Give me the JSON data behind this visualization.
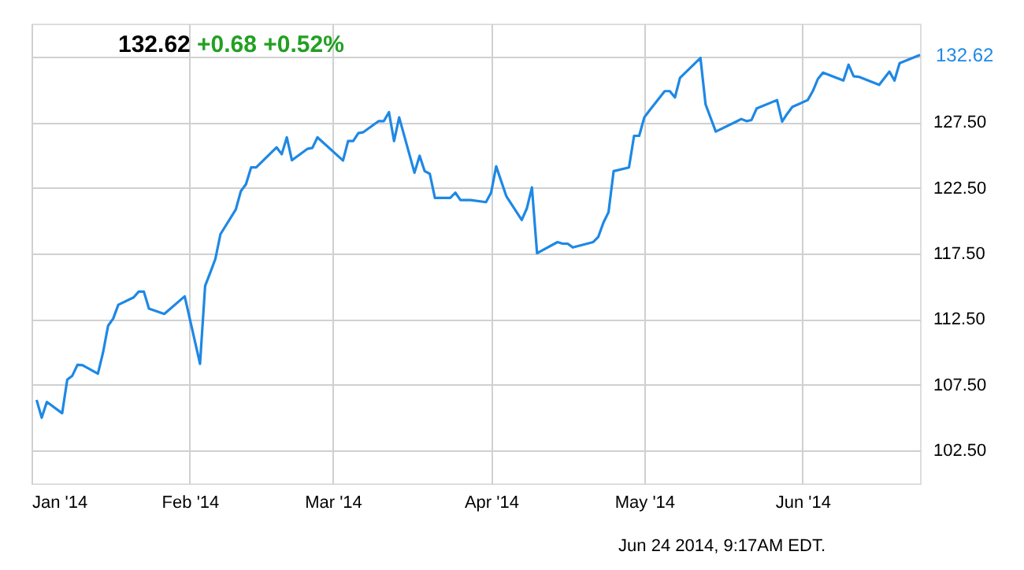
{
  "chart_data": {
    "type": "line",
    "title": "132.62",
    "subtitle": "+0.68 +0.52%",
    "x": [
      "2014-01-02",
      "2014-01-03",
      "2014-01-04",
      "2014-01-07",
      "2014-01-08",
      "2014-01-09",
      "2014-01-10",
      "2014-01-11",
      "2014-01-14",
      "2014-01-15",
      "2014-01-16",
      "2014-01-17",
      "2014-01-18",
      "2014-01-21",
      "2014-01-22",
      "2014-01-23",
      "2014-01-24",
      "2014-01-27",
      "2014-01-31",
      "2014-02-03",
      "2014-02-04",
      "2014-02-05",
      "2014-02-06",
      "2014-02-07",
      "2014-02-10",
      "2014-02-11",
      "2014-02-12",
      "2014-02-13",
      "2014-02-14",
      "2014-02-18",
      "2014-02-19",
      "2014-02-20",
      "2014-02-21",
      "2014-02-24",
      "2014-02-25",
      "2014-02-26",
      "2014-03-03",
      "2014-03-04",
      "2014-03-05",
      "2014-03-06",
      "2014-03-07",
      "2014-03-10",
      "2014-03-11",
      "2014-03-12",
      "2014-03-13",
      "2014-03-14",
      "2014-03-17",
      "2014-03-18",
      "2014-03-19",
      "2014-03-20",
      "2014-03-21",
      "2014-03-24",
      "2014-03-25",
      "2014-03-26",
      "2014-03-28",
      "2014-03-31",
      "2014-04-01",
      "2014-04-02",
      "2014-04-04",
      "2014-04-07",
      "2014-04-08",
      "2014-04-09",
      "2014-04-10",
      "2014-04-14",
      "2014-04-15",
      "2014-04-16",
      "2014-04-17",
      "2014-04-21",
      "2014-04-22",
      "2014-04-23",
      "2014-04-24",
      "2014-04-25",
      "2014-04-28",
      "2014-04-29",
      "2014-04-30",
      "2014-05-01",
      "2014-05-02",
      "2014-05-05",
      "2014-05-06",
      "2014-05-07",
      "2014-05-08",
      "2014-05-12",
      "2014-05-13",
      "2014-05-15",
      "2014-05-19",
      "2014-05-20",
      "2014-05-21",
      "2014-05-22",
      "2014-05-23",
      "2014-05-27",
      "2014-05-28",
      "2014-05-29",
      "2014-05-30",
      "2014-06-02",
      "2014-06-03",
      "2014-06-04",
      "2014-06-05",
      "2014-06-09",
      "2014-06-10",
      "2014-06-11",
      "2014-06-12",
      "2014-06-16",
      "2014-06-18",
      "2014-06-19",
      "2014-06-20",
      "2014-06-24"
    ],
    "series": [
      {
        "color": "#1e88e5",
        "values": [
          106.35,
          105.0,
          106.2,
          105.34,
          107.9,
          108.2,
          109.03,
          109.0,
          108.35,
          109.95,
          112.0,
          112.55,
          113.6,
          114.16,
          114.6,
          114.6,
          113.3,
          112.9,
          114.24,
          109.1,
          115.04,
          116.04,
          117.08,
          118.97,
          120.85,
          122.25,
          122.77,
          124.05,
          124.05,
          125.58,
          125.06,
          126.34,
          124.6,
          125.46,
          125.54,
          126.34,
          124.58,
          126.06,
          126.06,
          126.66,
          126.74,
          127.58,
          127.58,
          128.26,
          126.06,
          127.86,
          123.65,
          124.94,
          123.77,
          123.57,
          121.73,
          121.73,
          122.13,
          121.57,
          121.57,
          121.41,
          122.13,
          124.13,
          121.85,
          120.05,
          120.93,
          122.53,
          117.52,
          118.37,
          118.25,
          118.25,
          117.96,
          118.37,
          118.77,
          119.85,
          120.65,
          123.77,
          124.05,
          126.46,
          126.46,
          127.86,
          128.38,
          129.86,
          129.86,
          129.38,
          130.87,
          132.39,
          128.86,
          126.78,
          127.54,
          127.74,
          127.58,
          127.66,
          128.54,
          129.18,
          127.54,
          128.14,
          128.66,
          129.18,
          129.86,
          130.79,
          131.27,
          130.67,
          131.87,
          130.99,
          130.95,
          130.34,
          131.35,
          130.67,
          131.99,
          132.62
        ]
      }
    ],
    "xlim": [
      "2014-01-01",
      "2014-06-24"
    ],
    "xticks": [
      {
        "value": "2014-01-01",
        "label": "Jan '14"
      },
      {
        "value": "2014-02-01",
        "label": "Feb '14"
      },
      {
        "value": "2014-03-01",
        "label": "Mar '14"
      },
      {
        "value": "2014-04-01",
        "label": "Apr '14"
      },
      {
        "value": "2014-05-01",
        "label": "May '14"
      },
      {
        "value": "2014-06-01",
        "label": "Jun '14"
      }
    ],
    "ylim": [
      100,
      135
    ],
    "yticks": [
      {
        "value": 102.5,
        "label": "102.50"
      },
      {
        "value": 107.5,
        "label": "107.50"
      },
      {
        "value": 112.5,
        "label": "112.50"
      },
      {
        "value": 117.5,
        "label": "117.50"
      },
      {
        "value": 122.5,
        "label": "122.50"
      },
      {
        "value": 127.5,
        "label": "127.50"
      },
      {
        "value": 132.5,
        "label": null
      }
    ],
    "grid": true,
    "annotations": [
      {
        "text": "132.62",
        "x": "2014-06-24",
        "y": 132.62
      },
      "Jun 24 2014, 9:17AM EDT."
    ]
  }
}
